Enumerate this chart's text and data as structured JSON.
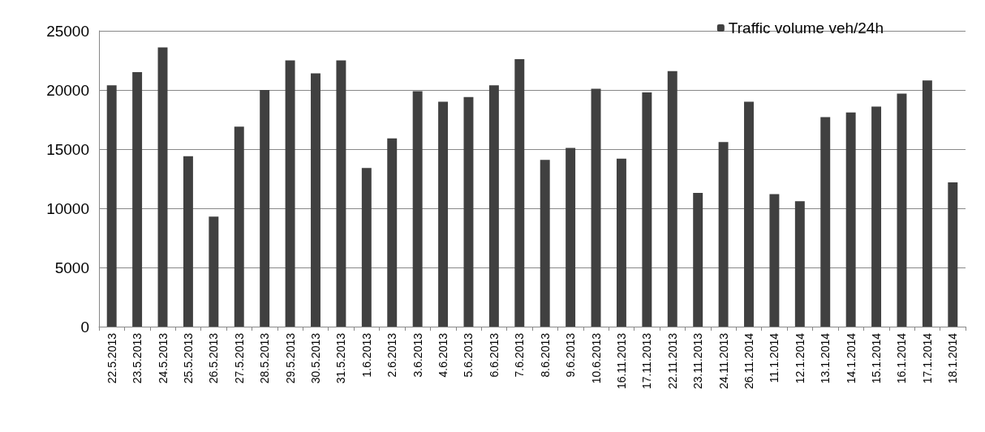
{
  "chart_data": {
    "type": "bar",
    "categories": [
      "22.5.2013",
      "23.5.2013",
      "24.5.2013",
      "25.5.2013",
      "26.5.2013",
      "27.5.2013",
      "28.5.2013",
      "29.5.2013",
      "30.5.2013",
      "31.5.2013",
      "1.6.2013",
      "2.6.2013",
      "3.6.2013",
      "4.6.2013",
      "5.6.2013",
      "6.6.2013",
      "7.6.2013",
      "8.6.2013",
      "9.6.2013",
      "10.6.2013",
      "16.11.2013",
      "17.11.2013",
      "22.11.2013",
      "23.11.2013",
      "24.11.2013",
      "26.11.2014",
      "11.1.2014",
      "12.1.2014",
      "13.1.2014",
      "14.1.2014",
      "15.1.2014",
      "16.1.2014",
      "17.1.2014",
      "18.1.2014"
    ],
    "series": [
      {
        "name": "Traffic volume veh/24h",
        "color": "#404040",
        "values": [
          20400,
          21500,
          23600,
          14400,
          9300,
          16900,
          20000,
          22500,
          21400,
          22500,
          13400,
          15900,
          19900,
          19000,
          19400,
          20400,
          22600,
          14100,
          15100,
          20100,
          14200,
          19800,
          21600,
          11300,
          15600,
          19000,
          11200,
          10600,
          17700,
          18100,
          18600,
          19700,
          20800,
          12200
        ]
      }
    ],
    "ylim": [
      0,
      25000
    ],
    "yticks": [
      0,
      5000,
      10000,
      15000,
      20000,
      25000
    ],
    "grid": "y",
    "legend": "top right"
  }
}
